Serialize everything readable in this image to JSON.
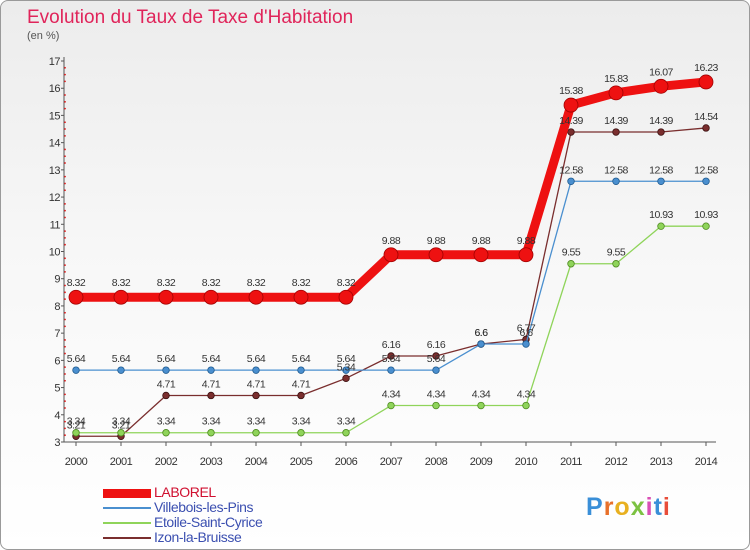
{
  "title": "Evolution du Taux de Taxe d'Habitation",
  "unit_label": "(en %)",
  "logo_text": "Proxiti",
  "chart_data": {
    "type": "line",
    "x": [
      "2000",
      "2001",
      "2002",
      "2003",
      "2004",
      "2005",
      "2006",
      "2007",
      "2008",
      "2009",
      "2010",
      "2011",
      "2012",
      "2013",
      "2014"
    ],
    "ylim": [
      3,
      17
    ],
    "yticks": [
      3,
      4,
      5,
      6,
      7,
      8,
      9,
      10,
      11,
      12,
      13,
      14,
      15,
      16,
      17
    ],
    "grid": false,
    "legend_position": "bottom-left",
    "series": [
      {
        "name": "LABOREL",
        "color": "#ee1111",
        "values": [
          8.32,
          8.32,
          8.32,
          8.32,
          8.32,
          8.32,
          8.32,
          9.88,
          9.88,
          9.88,
          9.88,
          15.38,
          15.83,
          16.07,
          16.23
        ],
        "labels": [
          "8.32",
          "8.32",
          "8.32",
          "8.32",
          "8.32",
          "8.32",
          "8.32",
          "9.88",
          "9.88",
          "9.88",
          "9.88",
          "15.38",
          "15.83",
          "16.07",
          "16.23"
        ]
      },
      {
        "name": "Villebois-les-Pins",
        "color": "#4a8fcf",
        "values": [
          5.64,
          5.64,
          5.64,
          5.64,
          5.64,
          5.64,
          5.64,
          5.64,
          5.64,
          6.6,
          6.6,
          12.58,
          12.58,
          12.58,
          12.58
        ],
        "labels": [
          "5.64",
          "5.64",
          "5.64",
          "5.64",
          "5.64",
          "5.64",
          "5.64",
          "5.64",
          "5.64",
          "6.6",
          "6.6",
          "12.58",
          "12.58",
          "12.58",
          "12.58"
        ]
      },
      {
        "name": "Etoile-Saint-Cyrice",
        "color": "#8fd45a",
        "values": [
          3.34,
          3.34,
          3.34,
          3.34,
          3.34,
          3.34,
          3.34,
          4.34,
          4.34,
          4.34,
          4.34,
          9.55,
          9.55,
          10.93,
          10.93
        ],
        "labels": [
          "3.34",
          "3.34",
          "3.34",
          "3.34",
          "3.34",
          "3.34",
          "3.34",
          "4.34",
          "4.34",
          "4.34",
          "4.34",
          "9.55",
          "9.55",
          "10.93",
          "10.93"
        ]
      },
      {
        "name": "Izon-la-Bruisse",
        "color": "#7a2e2e",
        "values": [
          3.21,
          3.21,
          4.71,
          4.71,
          4.71,
          4.71,
          5.34,
          6.16,
          6.16,
          6.6,
          6.77,
          14.39,
          14.39,
          14.39,
          14.54
        ],
        "labels": [
          "3.21",
          "3.21",
          "4.71",
          "4.71",
          "4.71",
          "4.71",
          "5.34",
          "6.16",
          "6.16",
          "6.6",
          "6.77",
          "14.39",
          "14.39",
          "14.39",
          "14.54"
        ]
      }
    ]
  }
}
